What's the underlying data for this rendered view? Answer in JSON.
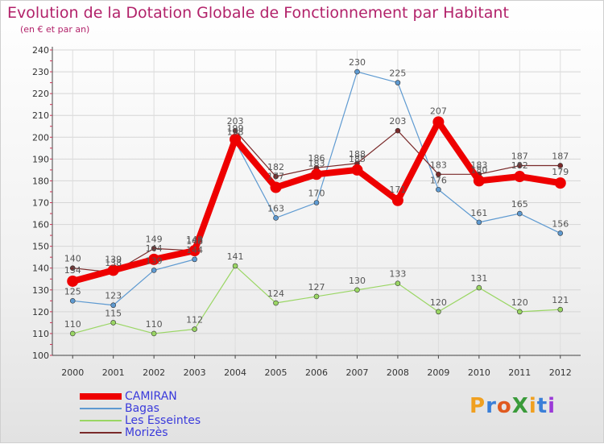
{
  "title": "Evolution de la Dotation Globale de Fonctionnement par Habitant",
  "subtitle": "(en € et par an)",
  "logo": {
    "text": "ProXiti",
    "colors": [
      "#f0a020",
      "#3a7fd8",
      "#e05a1f",
      "#3a9b3a",
      "#f0a020",
      "#3a7fd8",
      "#9b3ad8"
    ]
  },
  "chart_data": {
    "type": "line",
    "x": [
      "2000",
      "2001",
      "2002",
      "2003",
      "2004",
      "2005",
      "2006",
      "2007",
      "2008",
      "2009",
      "2010",
      "2011",
      "2012"
    ],
    "ylim": [
      100,
      240
    ],
    "yticks": [
      100,
      110,
      120,
      130,
      140,
      150,
      160,
      170,
      180,
      190,
      200,
      210,
      220,
      230,
      240
    ],
    "grid": true,
    "legend_placement": "bottom-left",
    "series": [
      {
        "name": "CAMIRAN",
        "color": "#ee0000",
        "values": [
          134,
          139,
          144,
          148,
          199,
          177,
          183,
          185,
          171,
          207,
          180,
          182,
          179
        ]
      },
      {
        "name": "Bagas",
        "color": "#5e9ad1",
        "values": [
          125,
          123,
          139,
          144,
          198,
          163,
          170,
          230,
          225,
          176,
          161,
          165,
          156
        ]
      },
      {
        "name": "Les Esseintes",
        "color": "#9ad664",
        "values": [
          110,
          115,
          110,
          112,
          141,
          124,
          127,
          130,
          133,
          120,
          131,
          120,
          121
        ]
      },
      {
        "name": "Morizès",
        "color": "#7a2a2a",
        "values": [
          140,
          138,
          149,
          148,
          203,
          182,
          186,
          188,
          203,
          183,
          183,
          187,
          187
        ]
      }
    ]
  }
}
